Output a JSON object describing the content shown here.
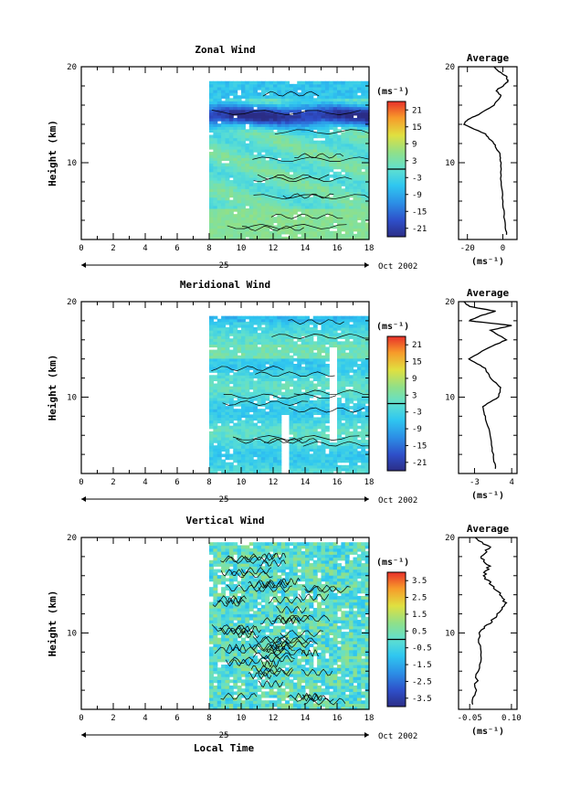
{
  "figure": {
    "date_label": "Oct 2002",
    "day_label": "25",
    "x_axis_label": "Local Time"
  },
  "chart_data": [
    {
      "type": "heatmap",
      "title": "Zonal Wind",
      "ylabel": "Height (km)",
      "xlabel": "Local Time",
      "xlim": [
        0,
        18
      ],
      "ylim": [
        2,
        20
      ],
      "x_ticks": [
        0,
        2,
        4,
        6,
        8,
        10,
        12,
        14,
        16,
        18
      ],
      "y_ticks": [
        10,
        20
      ],
      "data_x_range": [
        8,
        18
      ],
      "data_y_range": [
        2,
        18.5
      ],
      "colorbar": {
        "unit": "(ms⁻¹)",
        "ticks": [
          21,
          15,
          9,
          3,
          -3,
          -9,
          -15,
          -21
        ],
        "range": [
          -24,
          24
        ]
      },
      "profile": {
        "title": "Average",
        "xlim": [
          -25,
          8
        ],
        "x_ticks": [
          -20,
          0
        ],
        "x_ticklabels": [
          "-20",
          "0"
        ],
        "unit": "(ms⁻¹)",
        "heights": [
          2.5,
          4,
          6,
          8,
          10,
          11,
          12,
          13,
          14,
          14.5,
          15,
          16,
          17,
          17.5,
          18,
          18.5,
          19,
          19.5,
          20
        ],
        "values": [
          2,
          1,
          0,
          -1,
          -1,
          -2,
          -5,
          -10,
          -22,
          -20,
          -14,
          -5,
          -1,
          -4,
          0,
          3,
          2,
          -2,
          -5
        ]
      }
    },
    {
      "type": "heatmap",
      "title": "Meridional Wind",
      "ylabel": "Height (km)",
      "xlabel": "Local Time",
      "xlim": [
        0,
        18
      ],
      "ylim": [
        2,
        20
      ],
      "x_ticks": [
        0,
        2,
        4,
        6,
        8,
        10,
        12,
        14,
        16,
        18
      ],
      "y_ticks": [
        10,
        20
      ],
      "data_x_range": [
        8,
        18
      ],
      "data_y_range": [
        2,
        18.5
      ],
      "colorbar": {
        "unit": "(ms⁻¹)",
        "ticks": [
          21,
          15,
          9,
          3,
          -3,
          -9,
          -15,
          -21
        ],
        "range": [
          -24,
          24
        ]
      },
      "profile": {
        "title": "Average",
        "xlim": [
          -6,
          5
        ],
        "x_ticks": [
          -3,
          4
        ],
        "x_ticklabels": [
          "-3",
          "4"
        ],
        "unit": "(ms⁻¹)",
        "heights": [
          2.5,
          4,
          6,
          8,
          9,
          10,
          11,
          12,
          13,
          14,
          15,
          16,
          17,
          17.5,
          18,
          18.5,
          19,
          19.5,
          20
        ],
        "values": [
          1,
          0.5,
          0,
          -1,
          -1.5,
          1.5,
          2,
          0,
          -1,
          -4,
          -1,
          3,
          0,
          4,
          -4,
          -2,
          1,
          -4,
          -5
        ]
      }
    },
    {
      "type": "heatmap",
      "title": "Vertical Wind",
      "ylabel": "Height (km)",
      "xlabel": "Local Time",
      "xlim": [
        0,
        18
      ],
      "ylim": [
        2,
        20
      ],
      "x_ticks": [
        0,
        2,
        4,
        6,
        8,
        10,
        12,
        14,
        16,
        18
      ],
      "y_ticks": [
        10,
        20
      ],
      "data_x_range": [
        8,
        18
      ],
      "data_y_range": [
        2,
        19.5
      ],
      "colorbar": {
        "unit": "(ms⁻¹)",
        "ticks": [
          3.5,
          2.5,
          1.5,
          0.5,
          -0.5,
          -1.5,
          -2.5,
          -3.5
        ],
        "range": [
          -4,
          4
        ]
      },
      "profile": {
        "title": "Average",
        "xlim": [
          -0.09,
          0.12
        ],
        "x_ticks": [
          -0.05,
          0.1
        ],
        "x_ticklabels": [
          "-0.05",
          "0.10"
        ],
        "unit": "(ms⁻¹)",
        "heights": [
          2.5,
          4,
          6,
          8,
          10,
          11,
          12,
          13,
          14,
          15,
          16,
          17,
          18,
          19,
          20
        ],
        "values": [
          -0.04,
          -0.03,
          -0.02,
          -0.01,
          -0.02,
          0.02,
          0.05,
          0.08,
          0.06,
          0.03,
          0.0,
          0.02,
          -0.01,
          0.02,
          -0.03
        ]
      }
    }
  ]
}
